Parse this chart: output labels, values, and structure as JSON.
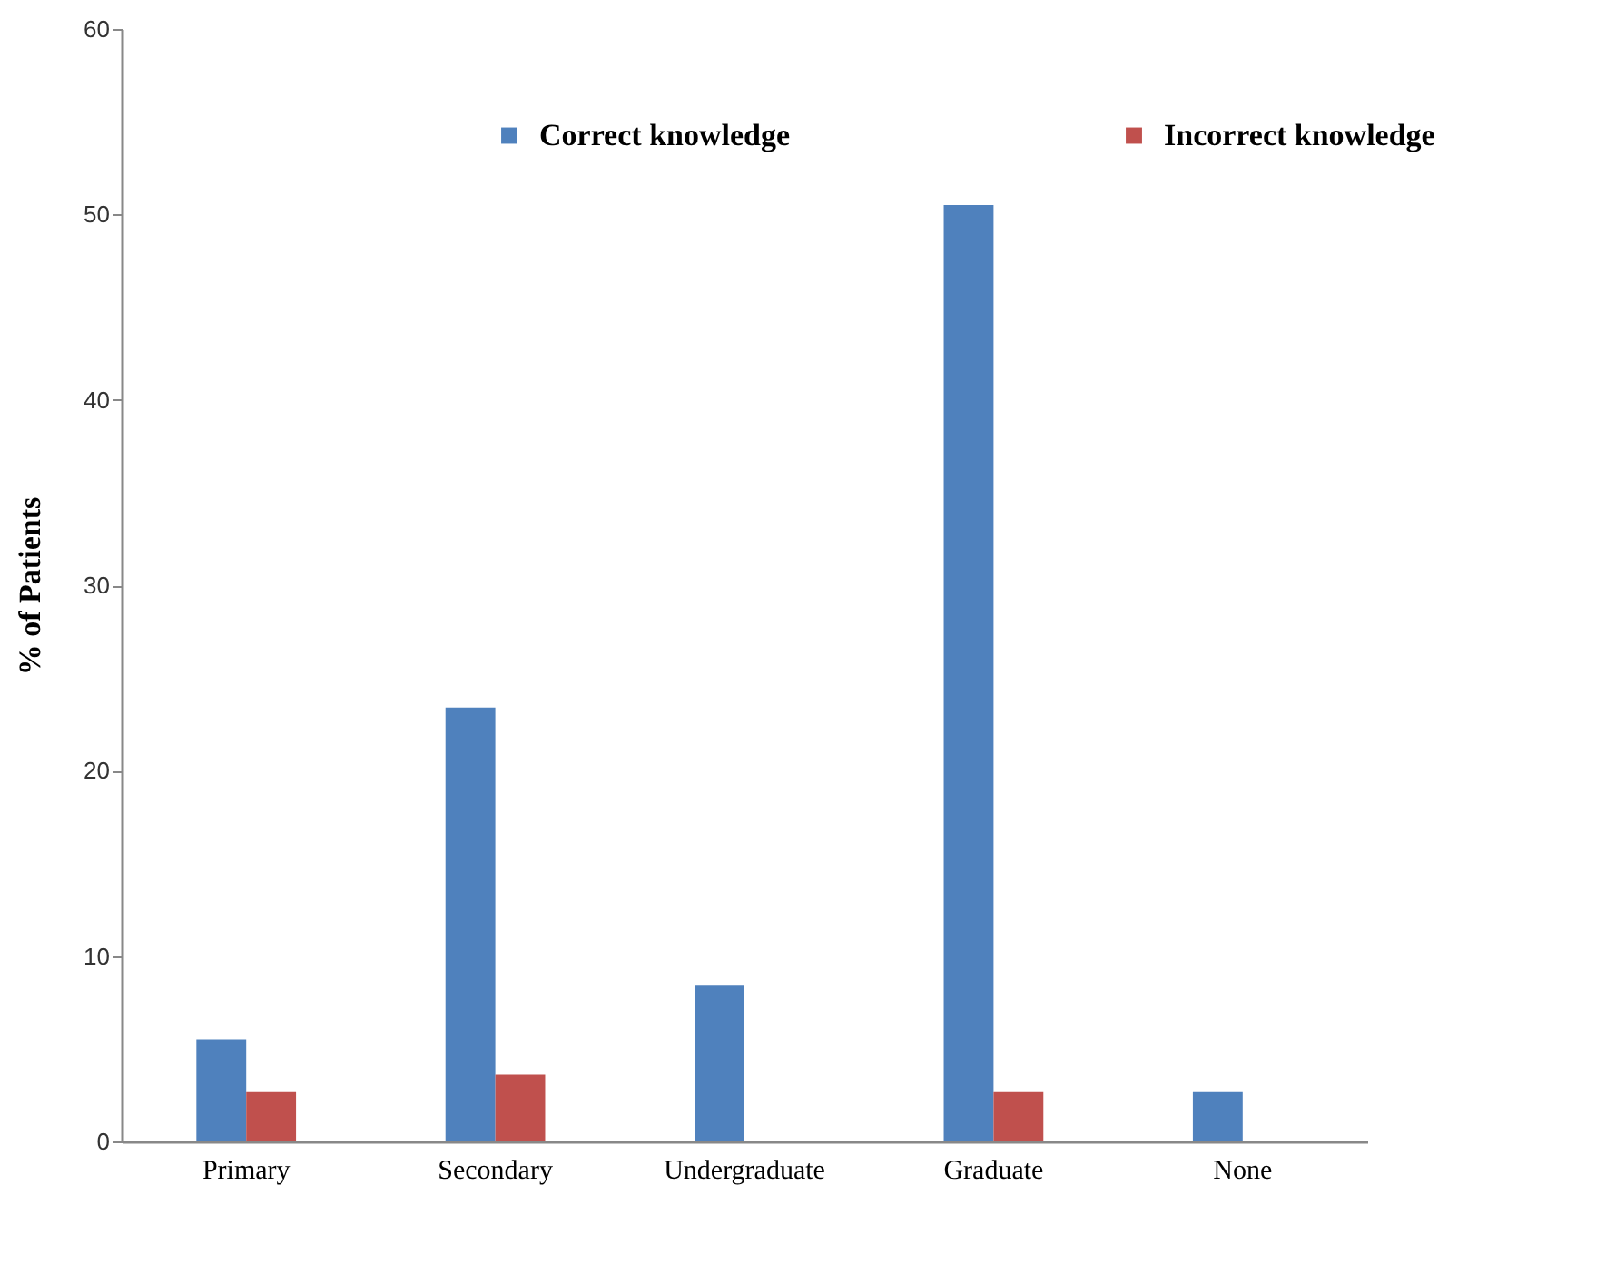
{
  "chart_data": {
    "type": "bar",
    "ylabel": "% of Patients",
    "categories": [
      "Primary",
      "Secondary",
      "Undergraduate",
      "Graduate",
      "None"
    ],
    "series": [
      {
        "name": "Correct knowledge",
        "color": "#4f81bd",
        "values": [
          5.5,
          23.4,
          8.4,
          50.5,
          2.7
        ]
      },
      {
        "name": "Incorrect knowledge",
        "color": "#c0504d",
        "values": [
          2.7,
          3.6,
          null,
          2.7,
          null
        ]
      }
    ],
    "ylim": [
      0,
      60
    ],
    "yticks": [
      0,
      10,
      20,
      30,
      40,
      50,
      60
    ],
    "legend": "top"
  }
}
